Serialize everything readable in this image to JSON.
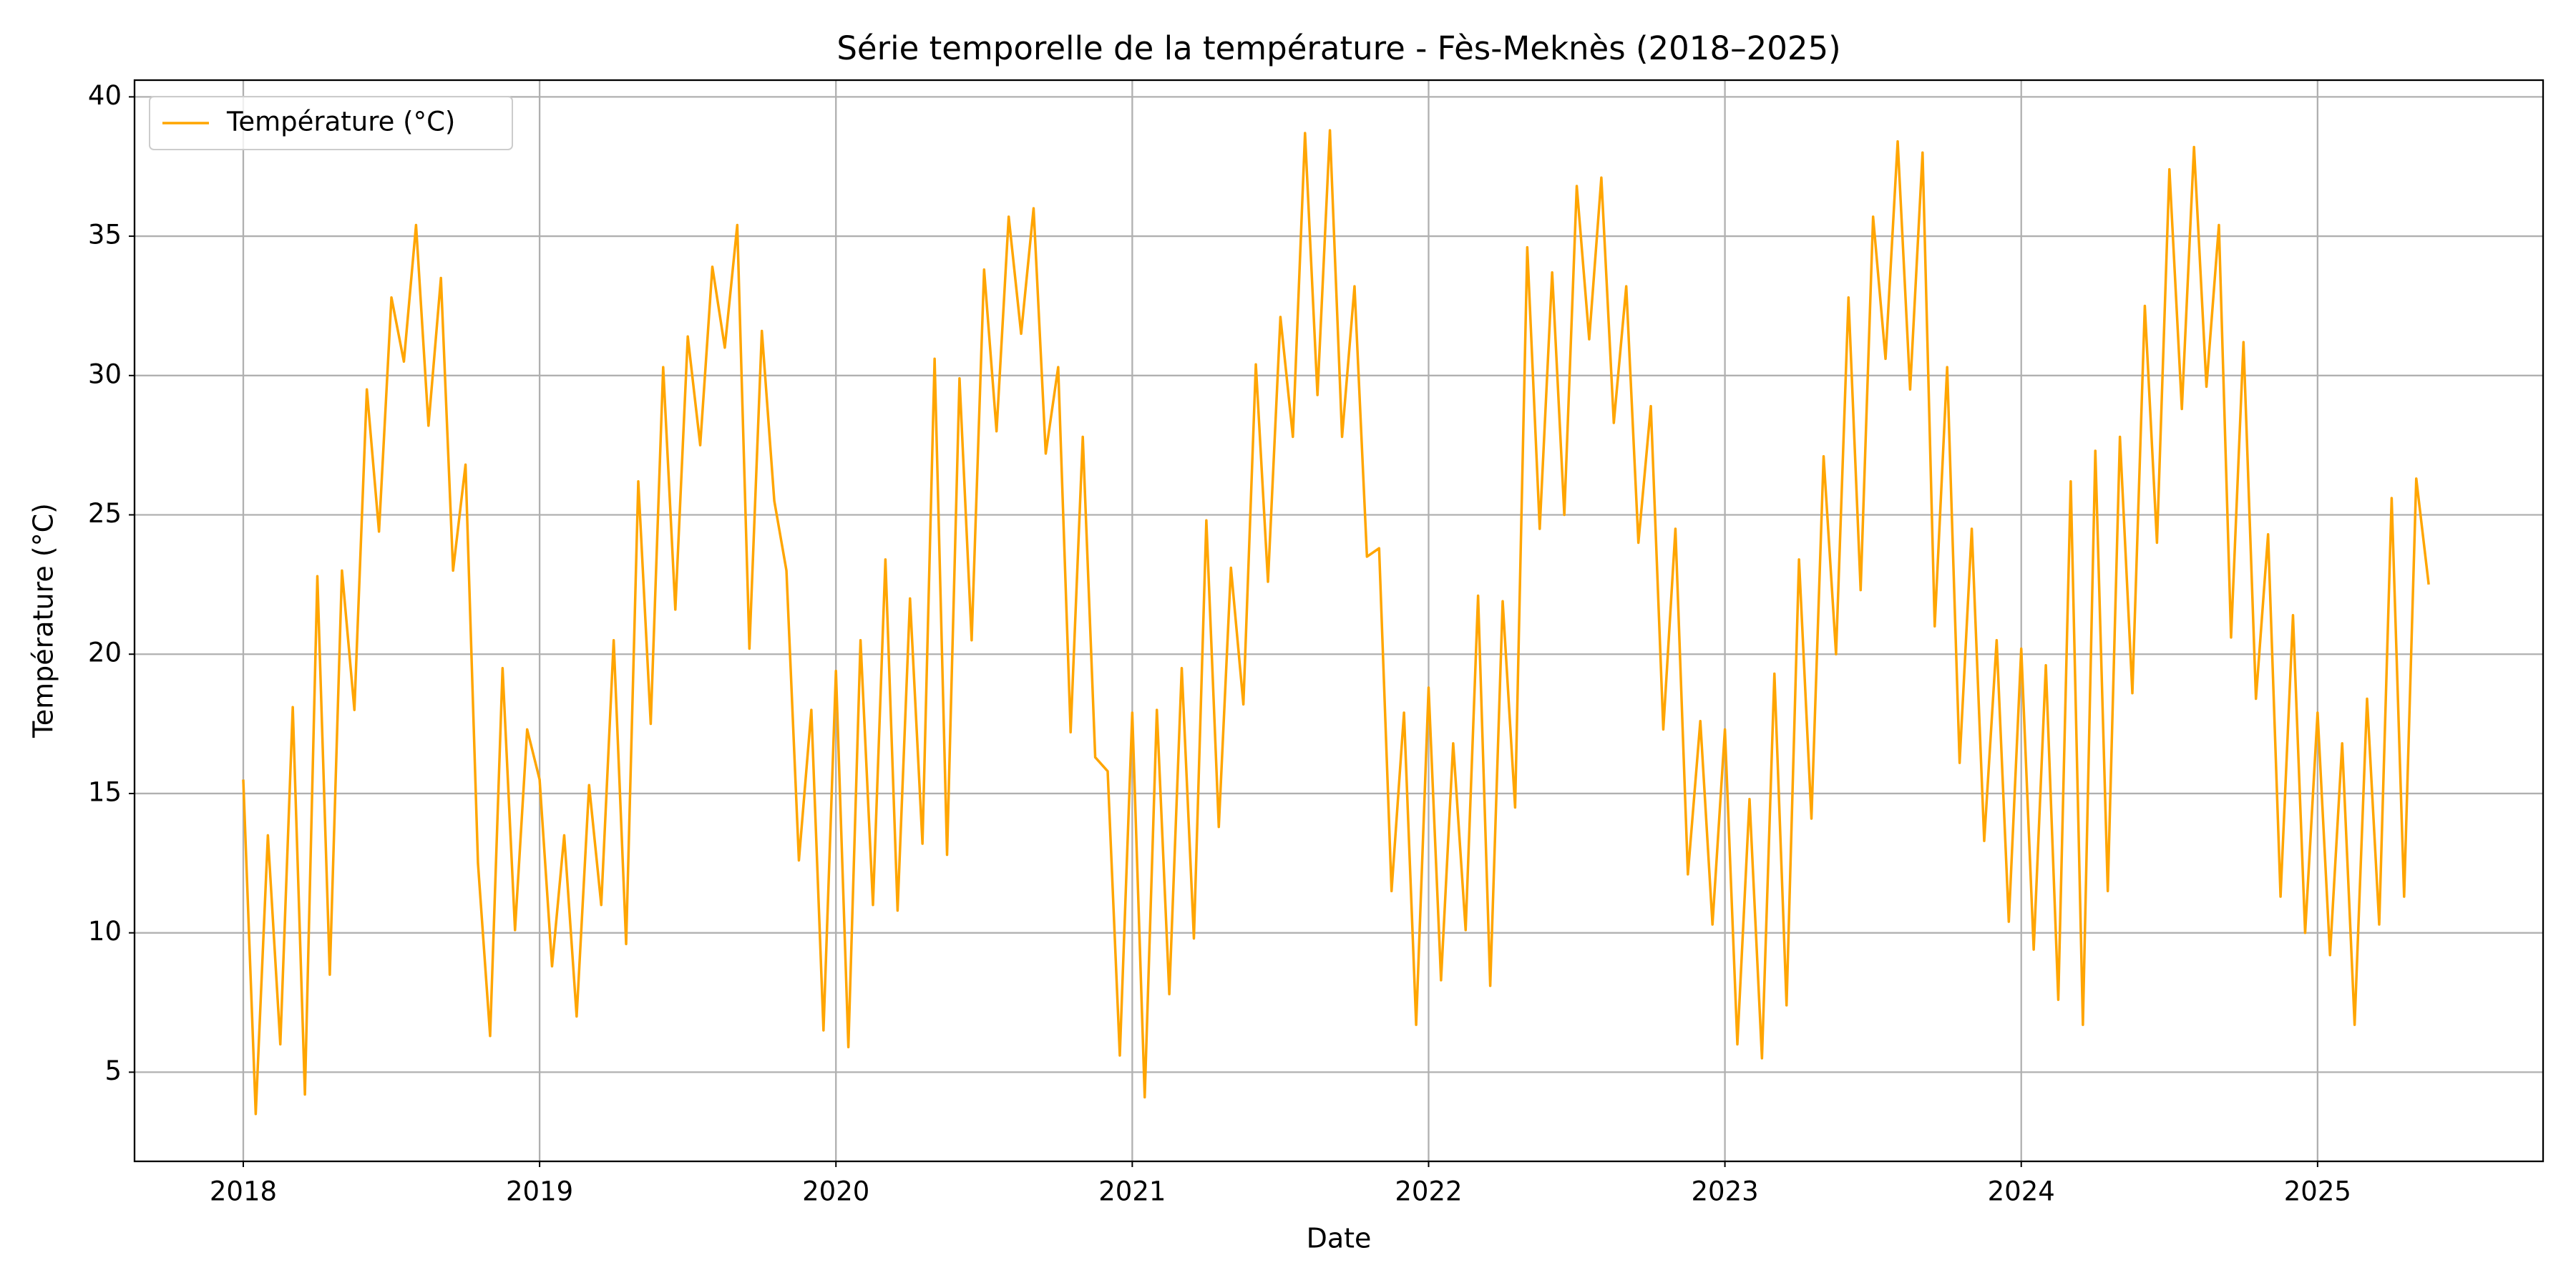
{
  "chart_data": {
    "type": "line",
    "title": "Série temporelle de la température - Fès-Meknès (2018–2025)",
    "xlabel": "Date",
    "ylabel": "Température (°C)",
    "xlim": [
      2017.633,
      2025.761
    ],
    "ylim": [
      1.8,
      40.6
    ],
    "xticks": [
      2018,
      2019,
      2020,
      2021,
      2022,
      2023,
      2024,
      2025
    ],
    "yticks": [
      5,
      10,
      15,
      20,
      25,
      30,
      35,
      40
    ],
    "grid": true,
    "legend": "upper left",
    "x": [
      2018,
      2018.042,
      2018.083,
      2018.125,
      2018.167,
      2018.208,
      2018.25,
      2018.292,
      2018.333,
      2018.375,
      2018.417,
      2018.458,
      2018.5,
      2018.542,
      2018.583,
      2018.625,
      2018.667,
      2018.708,
      2018.75,
      2018.792,
      2018.833,
      2018.875,
      2018.917,
      2018.958,
      2019,
      2019.042,
      2019.083,
      2019.125,
      2019.167,
      2019.208,
      2019.25,
      2019.292,
      2019.333,
      2019.375,
      2019.417,
      2019.458,
      2019.5,
      2019.542,
      2019.583,
      2019.625,
      2019.667,
      2019.708,
      2019.75,
      2019.792,
      2019.833,
      2019.875,
      2019.917,
      2019.958,
      2020,
      2020.042,
      2020.083,
      2020.125,
      2020.167,
      2020.208,
      2020.25,
      2020.292,
      2020.333,
      2020.375,
      2020.417,
      2020.458,
      2020.5,
      2020.542,
      2020.583,
      2020.625,
      2020.667,
      2020.708,
      2020.75,
      2020.792,
      2020.833,
      2020.875,
      2020.917,
      2020.958,
      2021,
      2021.042,
      2021.083,
      2021.125,
      2021.167,
      2021.208,
      2021.25,
      2021.292,
      2021.333,
      2021.375,
      2021.417,
      2021.458,
      2021.5,
      2021.542,
      2021.583,
      2021.625,
      2021.667,
      2021.708,
      2021.75,
      2021.792,
      2021.833,
      2021.875,
      2021.917,
      2021.958,
      2022,
      2022.042,
      2022.083,
      2022.125,
      2022.167,
      2022.208,
      2022.25,
      2022.292,
      2022.333,
      2022.375,
      2022.417,
      2022.458,
      2022.5,
      2022.542,
      2022.583,
      2022.625,
      2022.667,
      2022.708,
      2022.75,
      2022.792,
      2022.833,
      2022.875,
      2022.917,
      2022.958,
      2023,
      2023.042,
      2023.083,
      2023.125,
      2023.167,
      2023.208,
      2023.25,
      2023.292,
      2023.333,
      2023.375,
      2023.417,
      2023.458,
      2023.5,
      2023.542,
      2023.583,
      2023.625,
      2023.667,
      2023.708,
      2023.75,
      2023.792,
      2023.833,
      2023.875,
      2023.917,
      2023.958,
      2024,
      2024.042,
      2024.083,
      2024.125,
      2024.167,
      2024.208,
      2024.25,
      2024.292,
      2024.333,
      2024.375,
      2024.417,
      2024.458,
      2024.5,
      2024.542,
      2024.583,
      2024.625,
      2024.667,
      2024.708,
      2024.75,
      2024.792,
      2024.833,
      2024.875,
      2024.917,
      2024.958,
      2025,
      2025.042,
      2025.083,
      2025.125,
      2025.167,
      2025.208,
      2025.25,
      2025.292,
      2025.333,
      2025.375
    ],
    "series": [
      {
        "name": "Température (°C)",
        "color": "#ffa500",
        "values": [
          15.5,
          3.5,
          13.5,
          6.0,
          18.1,
          4.2,
          22.8,
          8.5,
          23.0,
          18.0,
          29.5,
          24.4,
          32.8,
          30.5,
          35.4,
          28.2,
          33.5,
          23.0,
          26.8,
          12.5,
          6.3,
          19.5,
          10.1,
          17.3,
          15.5,
          8.8,
          13.5,
          7.0,
          15.3,
          11.0,
          20.5,
          9.6,
          26.2,
          17.5,
          30.3,
          21.6,
          31.4,
          27.5,
          33.9,
          31.0,
          35.4,
          20.2,
          31.6,
          25.5,
          23.0,
          12.6,
          18.0,
          6.5,
          19.4,
          5.9,
          20.5,
          11.0,
          23.4,
          10.8,
          22.0,
          13.2,
          30.6,
          12.8,
          29.9,
          20.5,
          33.8,
          28.0,
          35.7,
          31.5,
          36.0,
          27.2,
          30.3,
          17.2,
          27.8,
          16.3,
          15.8,
          5.6,
          17.9,
          4.1,
          18.0,
          7.8,
          19.5,
          9.8,
          24.8,
          13.8,
          23.1,
          18.2,
          30.4,
          22.6,
          32.1,
          27.8,
          38.7,
          29.3,
          38.8,
          27.8,
          33.2,
          23.5,
          23.8,
          11.5,
          17.9,
          6.7,
          18.8,
          8.3,
          16.8,
          10.1,
          22.1,
          8.1,
          21.9,
          14.5,
          34.6,
          24.5,
          33.7,
          25.0,
          36.8,
          31.3,
          37.1,
          28.3,
          33.2,
          24.0,
          28.9,
          17.3,
          24.5,
          12.1,
          17.6,
          10.3,
          17.3,
          6.0,
          14.8,
          5.5,
          19.3,
          7.4,
          23.4,
          14.1,
          27.1,
          20.0,
          32.8,
          22.3,
          35.7,
          30.6,
          38.4,
          29.5,
          38.0,
          21.0,
          30.3,
          16.1,
          24.5,
          13.3,
          20.5,
          10.4,
          20.2,
          9.4,
          19.6,
          7.6,
          26.2,
          6.7,
          27.3,
          11.5,
          27.8,
          18.6,
          32.5,
          24.0,
          37.4,
          28.8,
          38.2,
          29.6,
          35.4,
          20.6,
          31.2,
          18.4,
          24.3,
          11.3,
          21.4,
          10.0,
          17.9,
          9.2,
          16.8,
          6.7,
          18.4,
          10.3,
          25.6,
          11.3,
          26.3,
          22.5
        ]
      }
    ]
  }
}
